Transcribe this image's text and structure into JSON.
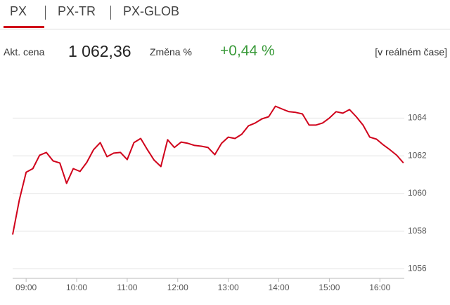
{
  "tabs": [
    "PX",
    "PX-TR",
    "PX-GLOB"
  ],
  "quote": {
    "price_label": "Akt. cena",
    "price": "1 062,36",
    "change_label": "Změna %",
    "change": "+0,44 %",
    "realtime": "[v reálném čase]"
  },
  "chart_data": {
    "type": "line",
    "color": "#d0021b",
    "x": [
      524,
      532,
      540,
      548,
      556,
      564,
      572,
      580,
      588,
      596,
      604,
      612,
      620,
      628,
      636,
      644,
      652,
      660,
      668,
      676,
      684,
      692,
      700,
      708,
      716,
      724,
      732,
      740,
      748,
      756,
      764,
      772,
      780,
      788,
      796,
      804,
      812,
      820,
      828,
      836,
      844,
      852,
      860,
      868,
      876,
      884,
      892,
      900,
      908,
      916,
      924,
      932,
      940,
      948,
      956,
      964,
      972,
      980,
      988
    ],
    "values": [
      1057.82,
      1059.68,
      1061.13,
      1061.32,
      1062.03,
      1062.18,
      1061.73,
      1061.62,
      1060.54,
      1061.32,
      1061.17,
      1061.65,
      1062.32,
      1062.7,
      1061.95,
      1062.14,
      1062.18,
      1061.8,
      1062.7,
      1062.92,
      1062.32,
      1061.77,
      1061.43,
      1062.85,
      1062.44,
      1062.73,
      1062.66,
      1062.55,
      1062.51,
      1062.44,
      1062.06,
      1062.66,
      1062.99,
      1062.92,
      1063.14,
      1063.59,
      1063.74,
      1063.96,
      1064.07,
      1064.63,
      1064.48,
      1064.34,
      1064.3,
      1064.22,
      1063.63,
      1063.63,
      1063.74,
      1064.0,
      1064.34,
      1064.26,
      1064.45,
      1064.07,
      1063.63,
      1062.99,
      1062.88,
      1062.58,
      1062.32,
      1062.03,
      1061.62
    ],
    "xlim": [
      524,
      989
    ],
    "xticks": [
      {
        "value": 540,
        "label": "09:00"
      },
      {
        "value": 600,
        "label": "10:00"
      },
      {
        "value": 660,
        "label": "11:00"
      },
      {
        "value": 720,
        "label": "12:00"
      },
      {
        "value": 780,
        "label": "13:00"
      },
      {
        "value": 840,
        "label": "14:00"
      },
      {
        "value": 900,
        "label": "15:00"
      },
      {
        "value": 960,
        "label": "16:00"
      }
    ],
    "ylim": [
      1055.5,
      1065.8
    ],
    "yticks": [
      1056,
      1058,
      1060,
      1062,
      1064
    ],
    "grid": true
  }
}
